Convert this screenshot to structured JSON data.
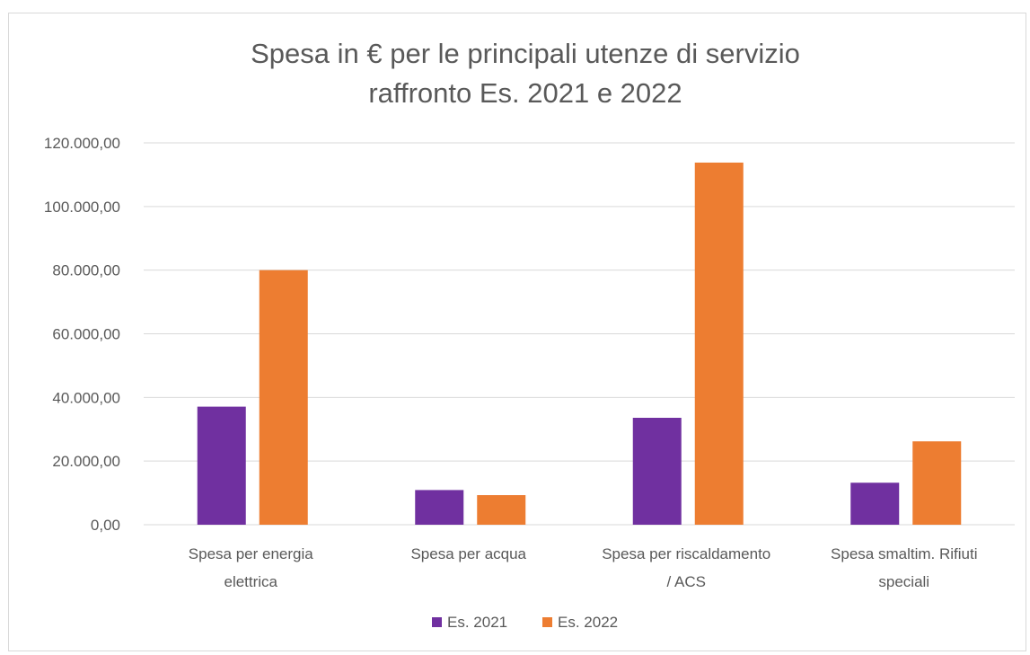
{
  "chart_data": {
    "type": "bar",
    "title": [
      "Spesa in € per le principali utenze di servizio",
      "raffronto Es. 2021 e 2022"
    ],
    "categories": [
      [
        "Spesa per energia",
        "elettrica"
      ],
      [
        "Spesa per acqua"
      ],
      [
        "Spesa per riscaldamento",
        "/ ACS"
      ],
      [
        "Spesa smaltim. Rifiuti",
        "speciali"
      ]
    ],
    "series": [
      {
        "name": "Es. 2021",
        "color": "#7030a0",
        "values": [
          37100,
          10900,
          33600,
          13200
        ]
      },
      {
        "name": "Es. 2022",
        "color": "#ed7d31",
        "values": [
          80000,
          9300,
          113800,
          26200
        ]
      }
    ],
    "ylim": [
      0,
      120000
    ],
    "yticks": [
      0,
      20000,
      40000,
      60000,
      80000,
      100000,
      120000
    ],
    "ytick_labels": [
      "0,00",
      "20.000,00",
      "40.000,00",
      "60.000,00",
      "80.000,00",
      "100.000,00",
      "120.000,00"
    ],
    "grid": true,
    "legend_position": "bottom"
  }
}
